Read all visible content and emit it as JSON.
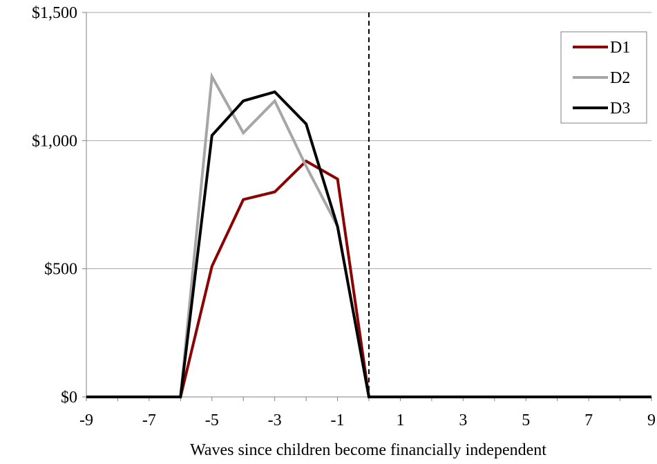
{
  "chart_data": {
    "type": "line",
    "title": "",
    "xlabel": "Waves since children become financially independent",
    "ylabel": "",
    "x": [
      -9,
      -8,
      -7,
      -6,
      -5,
      -4,
      -3,
      -2,
      -1,
      0,
      1,
      2,
      3,
      4,
      5,
      6,
      7,
      8,
      9
    ],
    "x_ticks": [
      -9,
      -7,
      -5,
      -3,
      -1,
      1,
      3,
      5,
      7,
      9
    ],
    "xlim": [
      -9,
      9
    ],
    "ylim": [
      0,
      1500
    ],
    "y_ticks": [
      0,
      500,
      1000,
      1500
    ],
    "y_tick_labels": [
      "$0",
      "$500",
      "$1,000",
      "$1,500"
    ],
    "grid": "horizontal",
    "legend_position": "top-right",
    "vertical_reference_line": {
      "x": 0,
      "style": "dashed"
    },
    "series": [
      {
        "name": "D1",
        "color": "#8B0000",
        "values": [
          0,
          0,
          0,
          0,
          510,
          770,
          800,
          920,
          850,
          0,
          0,
          0,
          0,
          0,
          0,
          0,
          0,
          0,
          0
        ]
      },
      {
        "name": "D2",
        "color": "#A6A6A6",
        "values": [
          0,
          0,
          0,
          0,
          1250,
          1030,
          1155,
          900,
          665,
          0,
          0,
          0,
          0,
          0,
          0,
          0,
          0,
          0,
          0
        ]
      },
      {
        "name": "D3",
        "color": "#000000",
        "values": [
          0,
          0,
          0,
          0,
          1020,
          1155,
          1190,
          1065,
          665,
          0,
          0,
          0,
          0,
          0,
          0,
          0,
          0,
          0,
          0
        ]
      }
    ]
  }
}
